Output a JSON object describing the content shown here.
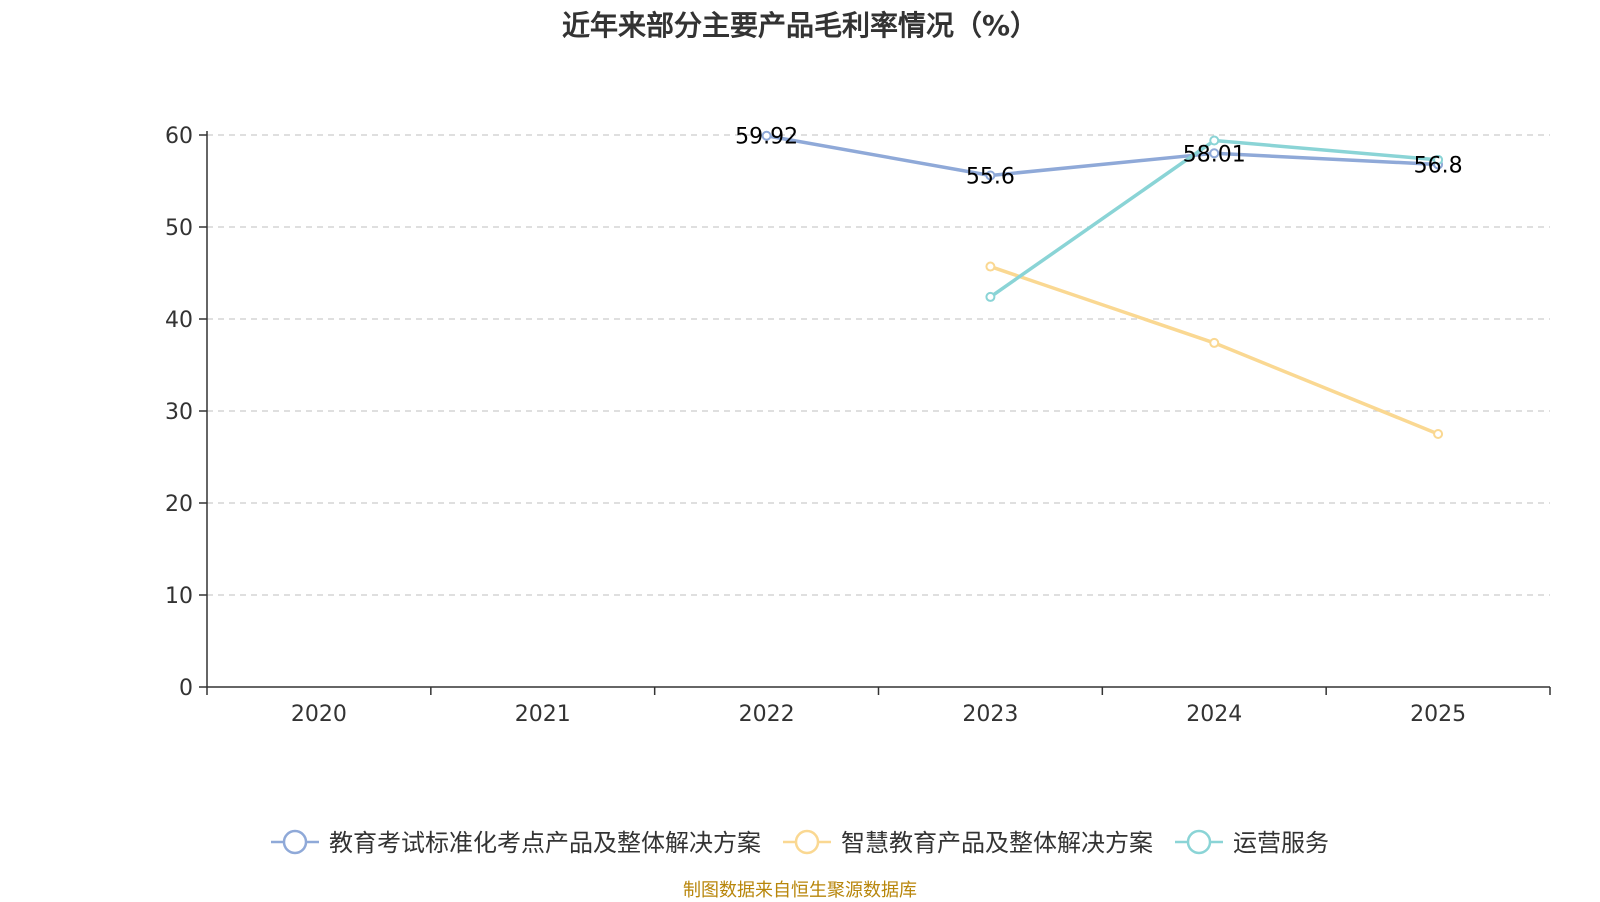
{
  "chart_data": {
    "type": "line",
    "title": "近年来部分主要产品毛利率情况（%）",
    "categories": [
      "2020",
      "2021",
      "2022",
      "2023",
      "2024",
      "2025"
    ],
    "ylim": [
      0,
      60
    ],
    "yticks": [
      "0",
      "10",
      "20",
      "30",
      "40",
      "50",
      "60"
    ],
    "grid": true,
    "legend_position": "bottom",
    "series": [
      {
        "name": "教育考试标准化考点产品及整体解决方案",
        "color": "#8fa9d8",
        "values": [
          null,
          null,
          59.92,
          55.6,
          58.01,
          56.8
        ],
        "labels": [
          "",
          "",
          "59.92",
          "55.6",
          "58.01",
          "56.8"
        ]
      },
      {
        "name": "智慧教育产品及整体解决方案",
        "color": "#fad892",
        "values": [
          null,
          null,
          null,
          45.7,
          37.4,
          27.5
        ],
        "labels": [
          "",
          "",
          "",
          "",
          "",
          ""
        ]
      },
      {
        "name": "运营服务",
        "color": "#8ad4d6",
        "values": [
          null,
          null,
          null,
          42.4,
          59.4,
          57.3
        ],
        "labels": [
          "",
          "",
          "",
          "",
          "",
          ""
        ]
      }
    ]
  },
  "footer": "制图数据来自恒生聚源数据库"
}
